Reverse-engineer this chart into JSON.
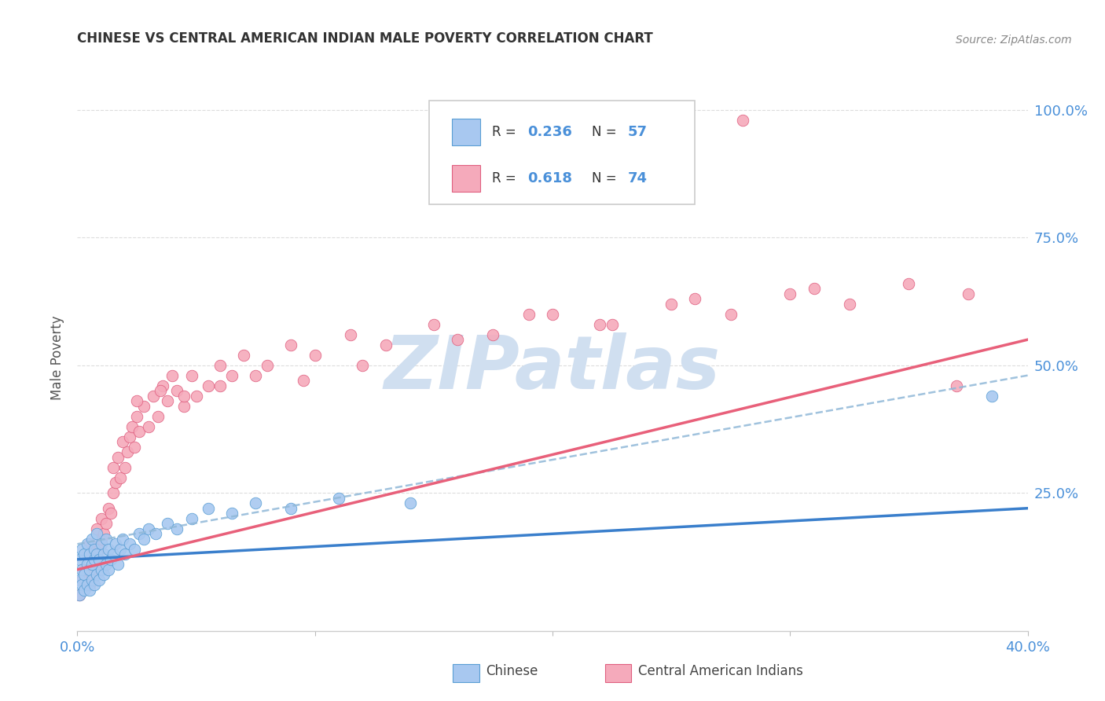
{
  "title": "CHINESE VS CENTRAL AMERICAN INDIAN MALE POVERTY CORRELATION CHART",
  "source": "Source: ZipAtlas.com",
  "ylabel": "Male Poverty",
  "xlim": [
    0.0,
    0.4
  ],
  "ylim": [
    -0.02,
    1.05
  ],
  "chinese_color": "#A8C8F0",
  "chinese_edge_color": "#5A9FD4",
  "central_color": "#F5AABB",
  "central_edge_color": "#E06080",
  "chinese_line_color": "#3A7FCC",
  "central_line_color": "#E8607A",
  "dashed_line_color": "#90B8D8",
  "watermark_text": "ZIPatlas",
  "watermark_color": "#D0DFF0",
  "background_color": "#FFFFFF",
  "grid_color": "#DDDDDD",
  "tick_color": "#4A90D9",
  "title_color": "#333333",
  "source_color": "#888888",
  "legend_text_color": "#333333",
  "legend_value_color": "#4A90D9",
  "chinese_x": [
    0.001,
    0.001,
    0.001,
    0.002,
    0.002,
    0.002,
    0.003,
    0.003,
    0.003,
    0.004,
    0.004,
    0.004,
    0.005,
    0.005,
    0.005,
    0.006,
    0.006,
    0.006,
    0.007,
    0.007,
    0.007,
    0.008,
    0.008,
    0.008,
    0.009,
    0.009,
    0.01,
    0.01,
    0.011,
    0.011,
    0.012,
    0.012,
    0.013,
    0.013,
    0.014,
    0.015,
    0.016,
    0.017,
    0.018,
    0.019,
    0.02,
    0.022,
    0.024,
    0.026,
    0.028,
    0.03,
    0.033,
    0.038,
    0.042,
    0.048,
    0.055,
    0.065,
    0.075,
    0.09,
    0.11,
    0.14,
    0.385
  ],
  "chinese_y": [
    0.05,
    0.08,
    0.12,
    0.07,
    0.1,
    0.14,
    0.06,
    0.09,
    0.13,
    0.07,
    0.11,
    0.15,
    0.06,
    0.1,
    0.13,
    0.08,
    0.11,
    0.16,
    0.07,
    0.12,
    0.14,
    0.09,
    0.13,
    0.17,
    0.08,
    0.12,
    0.1,
    0.15,
    0.09,
    0.13,
    0.11,
    0.16,
    0.1,
    0.14,
    0.12,
    0.13,
    0.15,
    0.11,
    0.14,
    0.16,
    0.13,
    0.15,
    0.14,
    0.17,
    0.16,
    0.18,
    0.17,
    0.19,
    0.18,
    0.2,
    0.22,
    0.21,
    0.23,
    0.22,
    0.24,
    0.23,
    0.44
  ],
  "central_x": [
    0.001,
    0.002,
    0.003,
    0.004,
    0.005,
    0.005,
    0.006,
    0.007,
    0.008,
    0.008,
    0.009,
    0.01,
    0.01,
    0.011,
    0.012,
    0.013,
    0.014,
    0.015,
    0.015,
    0.016,
    0.017,
    0.018,
    0.019,
    0.02,
    0.021,
    0.022,
    0.023,
    0.024,
    0.025,
    0.026,
    0.028,
    0.03,
    0.032,
    0.034,
    0.036,
    0.038,
    0.04,
    0.042,
    0.045,
    0.048,
    0.05,
    0.055,
    0.06,
    0.065,
    0.07,
    0.08,
    0.09,
    0.1,
    0.115,
    0.13,
    0.15,
    0.175,
    0.2,
    0.225,
    0.25,
    0.275,
    0.3,
    0.325,
    0.35,
    0.375,
    0.025,
    0.035,
    0.045,
    0.06,
    0.075,
    0.095,
    0.12,
    0.16,
    0.19,
    0.22,
    0.26,
    0.31,
    0.37,
    0.28
  ],
  "central_y": [
    0.05,
    0.08,
    0.1,
    0.13,
    0.07,
    0.15,
    0.09,
    0.12,
    0.11,
    0.18,
    0.14,
    0.16,
    0.2,
    0.17,
    0.19,
    0.22,
    0.21,
    0.25,
    0.3,
    0.27,
    0.32,
    0.28,
    0.35,
    0.3,
    0.33,
    0.36,
    0.38,
    0.34,
    0.4,
    0.37,
    0.42,
    0.38,
    0.44,
    0.4,
    0.46,
    0.43,
    0.48,
    0.45,
    0.42,
    0.48,
    0.44,
    0.46,
    0.5,
    0.48,
    0.52,
    0.5,
    0.54,
    0.52,
    0.56,
    0.54,
    0.58,
    0.56,
    0.6,
    0.58,
    0.62,
    0.6,
    0.64,
    0.62,
    0.66,
    0.64,
    0.43,
    0.45,
    0.44,
    0.46,
    0.48,
    0.47,
    0.5,
    0.55,
    0.6,
    0.58,
    0.63,
    0.65,
    0.46,
    0.98
  ]
}
